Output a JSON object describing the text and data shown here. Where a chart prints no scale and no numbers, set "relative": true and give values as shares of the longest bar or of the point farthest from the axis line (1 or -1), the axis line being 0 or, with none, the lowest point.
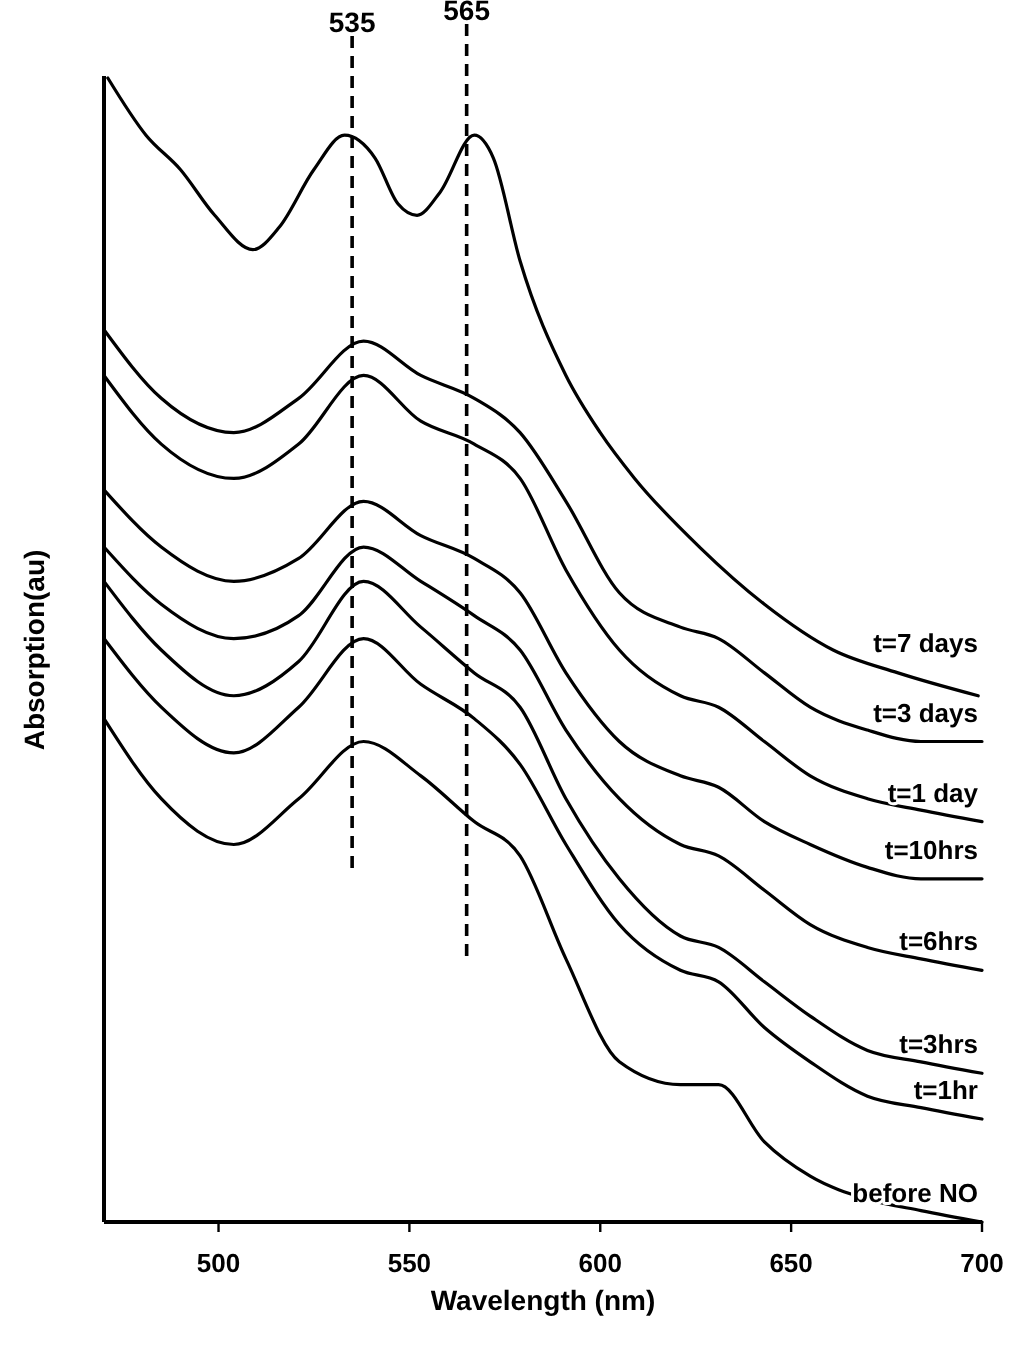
{
  "chart_data": {
    "type": "line",
    "xlabel": "Wavelength (nm)",
    "ylabel": "Absorption(au)",
    "relative": true,
    "xlim": [
      470,
      700
    ],
    "xticks": [
      500,
      550,
      600,
      650,
      700
    ],
    "grid": false,
    "marker": "none",
    "line_style": "solid",
    "x": [
      470,
      485,
      504,
      521,
      538,
      553,
      567,
      579,
      591,
      605,
      621,
      631,
      643,
      655,
      670,
      684,
      700
    ],
    "series": [
      {
        "name": "t=7 days",
        "color": "#000000",
        "x": [
          471,
          481,
          490,
          499,
          509,
          516,
          525,
          533,
          541,
          547,
          552,
          558,
          567,
          572,
          579,
          591,
          600,
          609,
          626,
          643,
          661,
          678,
          699
        ],
        "values": [
          1.0,
          0.95,
          0.92,
          0.88,
          0.85,
          0.87,
          0.92,
          0.95,
          0.93,
          0.89,
          0.88,
          0.9,
          0.95,
          0.93,
          0.84,
          0.74,
          0.69,
          0.65,
          0.59,
          0.54,
          0.5,
          0.48,
          0.46
        ]
      },
      {
        "name": "t=3 days",
        "color": "#000000",
        "values": [
          0.78,
          0.72,
          0.69,
          0.72,
          0.77,
          0.74,
          0.72,
          0.69,
          0.63,
          0.55,
          0.52,
          0.51,
          0.48,
          0.45,
          0.43,
          0.42,
          0.42
        ]
      },
      {
        "name": "t=1 day",
        "color": "#000000",
        "values": [
          0.74,
          0.68,
          0.65,
          0.68,
          0.74,
          0.7,
          0.68,
          0.65,
          0.57,
          0.5,
          0.46,
          0.45,
          0.42,
          0.39,
          0.37,
          0.36,
          0.35
        ]
      },
      {
        "name": "t=10hrs",
        "color": "#000000",
        "values": [
          0.64,
          0.59,
          0.56,
          0.58,
          0.63,
          0.6,
          0.58,
          0.55,
          0.48,
          0.42,
          0.39,
          0.38,
          0.35,
          0.33,
          0.31,
          0.3,
          0.3
        ]
      },
      {
        "name": "t=6hrs",
        "color": "#000000",
        "values": [
          0.59,
          0.54,
          0.51,
          0.53,
          0.59,
          0.56,
          0.53,
          0.5,
          0.43,
          0.37,
          0.33,
          0.32,
          0.29,
          0.26,
          0.24,
          0.23,
          0.22
        ]
      },
      {
        "name": "t=3hrs",
        "color": "#000000",
        "values": [
          0.56,
          0.5,
          0.46,
          0.49,
          0.56,
          0.52,
          0.48,
          0.45,
          0.37,
          0.3,
          0.25,
          0.24,
          0.21,
          0.18,
          0.15,
          0.14,
          0.13
        ]
      },
      {
        "name": "t=1hr",
        "color": "#000000",
        "values": [
          0.51,
          0.45,
          0.41,
          0.45,
          0.51,
          0.47,
          0.44,
          0.4,
          0.33,
          0.26,
          0.22,
          0.21,
          0.17,
          0.14,
          0.11,
          0.1,
          0.09
        ]
      },
      {
        "name": "before NO",
        "color": "#000000",
        "values": [
          0.44,
          0.37,
          0.33,
          0.37,
          0.42,
          0.39,
          0.35,
          0.32,
          0.23,
          0.14,
          0.12,
          0.12,
          0.07,
          0.04,
          0.02,
          0.01,
          0.0
        ]
      }
    ],
    "ref_lines": [
      {
        "axis": "x",
        "value": 535,
        "label": "535",
        "color": "#000000",
        "line_style": "dashed"
      },
      {
        "axis": "x",
        "value": 565,
        "label": "565",
        "color": "#000000",
        "line_style": "dashed"
      }
    ]
  }
}
